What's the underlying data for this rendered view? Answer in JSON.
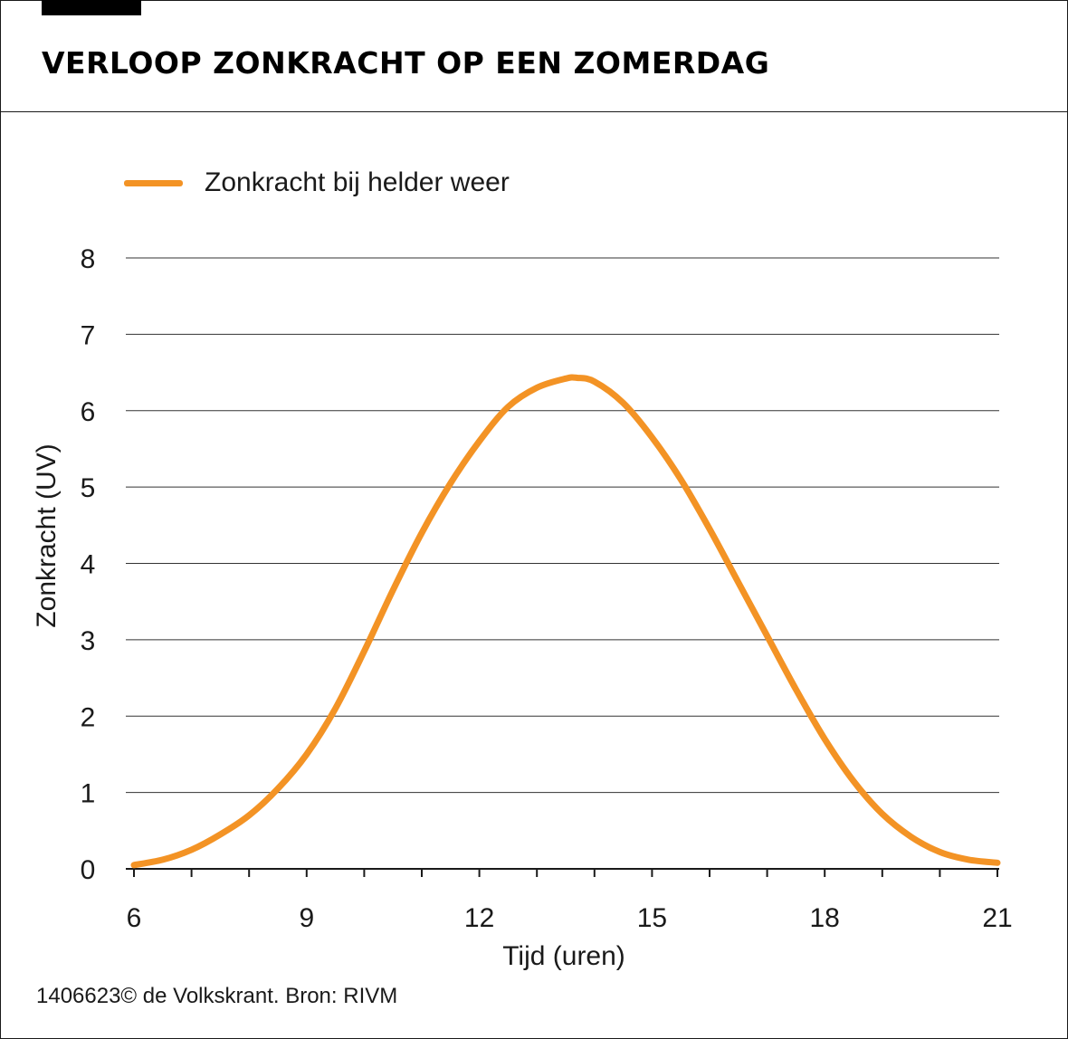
{
  "title": "VERLOOP ZONKRACHT OP EEN ZOMERDAG",
  "credit": "1406623© de Volkskrant. Bron: RIVM",
  "chart_data": {
    "type": "line",
    "title": "VERLOOP ZONKRACHT OP EEN ZOMERDAG",
    "xlabel": "Tijd (uren)",
    "ylabel": "Zonkracht (UV)",
    "xlim": [
      6,
      21
    ],
    "ylim": [
      0,
      8
    ],
    "xticks": [
      6,
      9,
      12,
      15,
      18,
      21
    ],
    "yticks": [
      0,
      1,
      2,
      3,
      4,
      5,
      6,
      7,
      8
    ],
    "grid": "horizontal",
    "legend_position": "top-left",
    "series": [
      {
        "name": "Zonkracht bij helder weer",
        "color": "#f39325",
        "x": [
          6,
          6.5,
          7,
          7.5,
          8,
          8.5,
          9,
          9.5,
          10,
          10.5,
          11,
          11.5,
          12,
          12.5,
          13,
          13.5,
          13.7,
          14,
          14.5,
          15,
          15.5,
          16,
          16.5,
          17,
          17.5,
          18,
          18.5,
          19,
          19.5,
          20,
          20.5,
          21
        ],
        "y": [
          0.05,
          0.12,
          0.25,
          0.45,
          0.7,
          1.05,
          1.5,
          2.1,
          2.85,
          3.65,
          4.4,
          5.05,
          5.6,
          6.05,
          6.3,
          6.42,
          6.43,
          6.38,
          6.1,
          5.65,
          5.1,
          4.45,
          3.75,
          3.05,
          2.35,
          1.7,
          1.15,
          0.72,
          0.42,
          0.22,
          0.12,
          0.08
        ]
      }
    ]
  },
  "colors": {
    "line": "#f39325",
    "grid": "#333333",
    "text": "#1a1a1a"
  }
}
